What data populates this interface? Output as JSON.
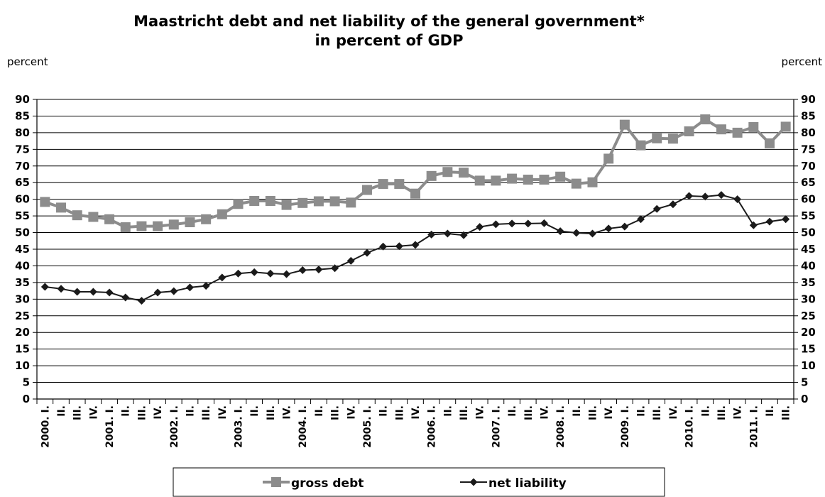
{
  "chart_data": {
    "type": "line",
    "title": "Maastricht debt and net liability of the general government*",
    "subtitle": "in percent of GDP",
    "ylabel_left": "percent",
    "ylabel_right": "percent",
    "ylim": [
      0,
      90
    ],
    "yticks": [
      0,
      5,
      10,
      15,
      20,
      25,
      30,
      35,
      40,
      45,
      50,
      55,
      60,
      65,
      70,
      75,
      80,
      85,
      90
    ],
    "grid": true,
    "legend_position": "bottom",
    "categories": [
      "2000. I.",
      "II.",
      "III.",
      "IV.",
      "2001. I.",
      "II.",
      "III.",
      "IV.",
      "2002. I.",
      "II.",
      "III.",
      "IV.",
      "2003. I.",
      "II.",
      "III.",
      "IV.",
      "2004. I.",
      "II.",
      "III.",
      "IV.",
      "2005. I.",
      "II.",
      "III.",
      "IV.",
      "2006. I.",
      "II.",
      "III.",
      "IV.",
      "2007. I.",
      "II.",
      "III.",
      "IV.",
      "2008. I.",
      "II.",
      "III.",
      "IV.",
      "2009. I.",
      "II.",
      "III.",
      "IV.",
      "2010. I.",
      "II.",
      "III.",
      "IV.",
      "2011. I.",
      "II.",
      "III."
    ],
    "series": [
      {
        "name": "gross debt",
        "color": "#8c8c8c",
        "marker": "square",
        "values": [
          59.2,
          57.5,
          55.2,
          54.7,
          54.0,
          51.6,
          51.9,
          51.9,
          52.4,
          53.1,
          54.0,
          55.5,
          58.6,
          59.5,
          59.5,
          58.3,
          58.9,
          59.4,
          59.4,
          59.0,
          62.8,
          64.6,
          64.6,
          61.7,
          67.0,
          68.2,
          68.0,
          65.6,
          65.6,
          66.2,
          65.9,
          65.9,
          66.8,
          64.7,
          65.1,
          72.2,
          82.4,
          76.2,
          78.3,
          78.2,
          80.4,
          84.0,
          81.0,
          80.0,
          81.7,
          76.8,
          81.8
        ]
      },
      {
        "name": "net liability",
        "color": "#1a1a1a",
        "marker": "diamond",
        "values": [
          33.7,
          33.1,
          32.2,
          32.2,
          32.0,
          30.5,
          29.5,
          32.0,
          32.4,
          33.5,
          34.0,
          36.5,
          37.7,
          38.1,
          37.7,
          37.5,
          38.7,
          38.9,
          39.3,
          41.5,
          43.9,
          45.8,
          45.9,
          46.3,
          49.4,
          49.7,
          49.2,
          51.7,
          52.5,
          52.7,
          52.7,
          52.8,
          50.4,
          49.9,
          49.7,
          51.2,
          51.8,
          54.0,
          57.1,
          58.5,
          61.0,
          60.8,
          61.3,
          60.0,
          52.2,
          53.3,
          54.0
        ]
      }
    ]
  }
}
